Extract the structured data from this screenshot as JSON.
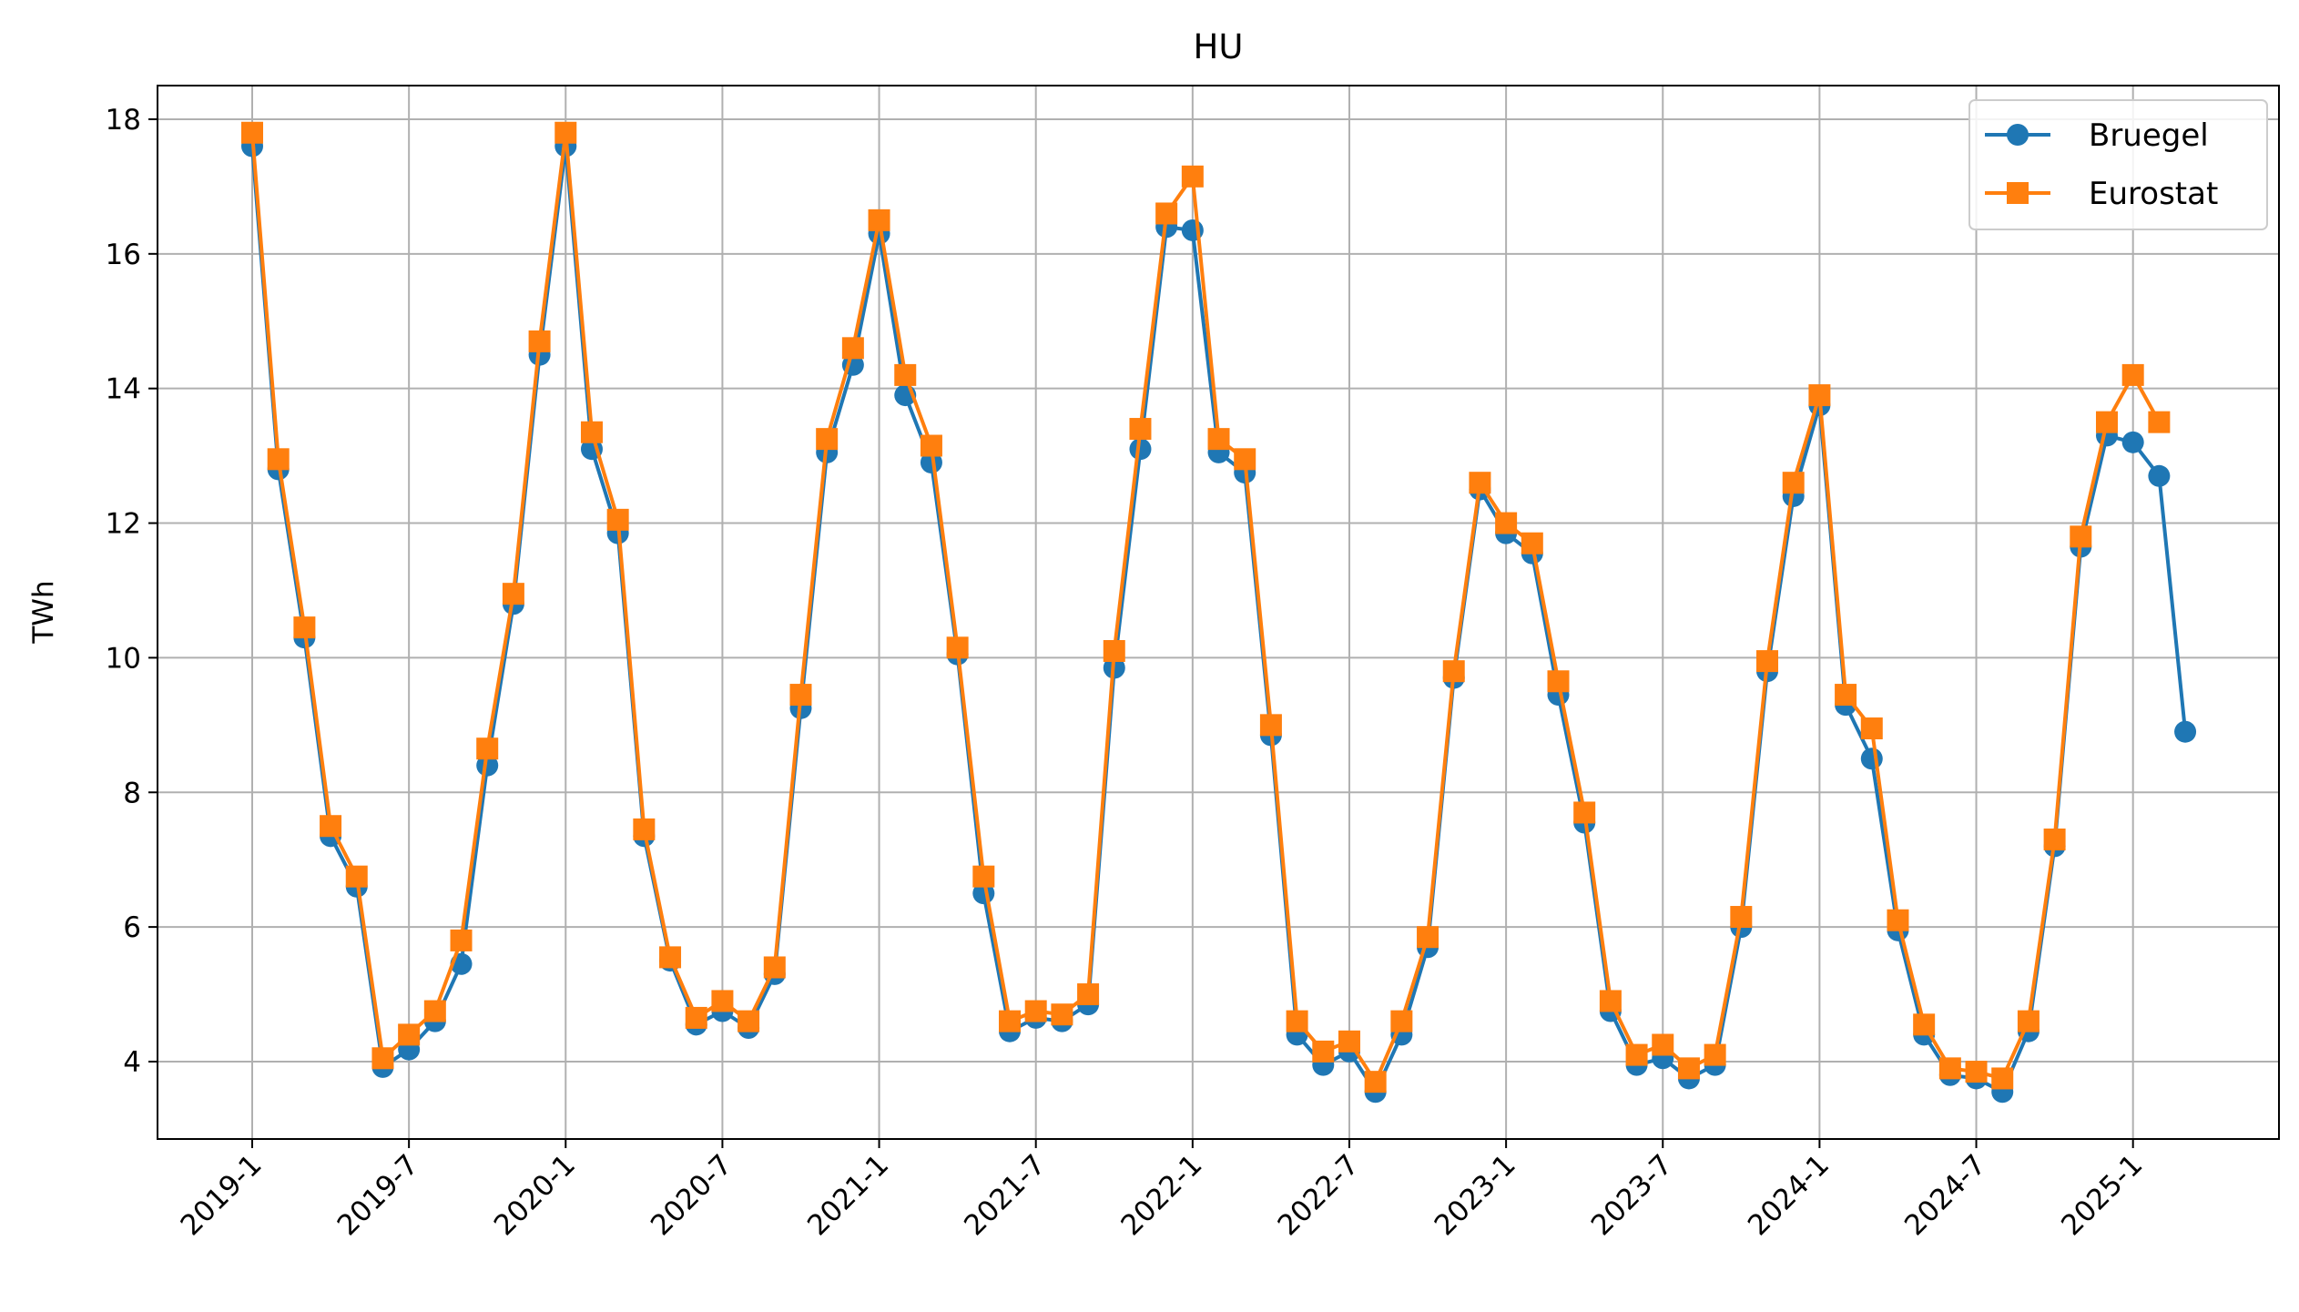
{
  "chart_data": {
    "type": "line",
    "title": "HU",
    "xlabel": "",
    "ylabel": "TWh",
    "grid": true,
    "legend_position": "upper right",
    "x_start": "2019-1",
    "x_tick_labels": [
      "2019-1",
      "2019-7",
      "2020-1",
      "2020-7",
      "2021-1",
      "2021-7",
      "2022-1",
      "2022-7",
      "2023-1",
      "2023-7",
      "2024-1",
      "2024-7",
      "2025-1"
    ],
    "y_ticks": [
      4,
      6,
      8,
      10,
      12,
      14,
      16,
      18
    ],
    "ylim": [
      2.85,
      18.5
    ],
    "series": [
      {
        "name": "Bruegel",
        "color": "#1f77b4",
        "marker": "circle",
        "values": [
          17.6,
          12.8,
          10.3,
          7.35,
          6.6,
          3.92,
          4.18,
          4.6,
          5.45,
          8.4,
          10.8,
          14.5,
          17.6,
          13.1,
          11.85,
          7.35,
          5.5,
          4.55,
          4.75,
          4.5,
          5.3,
          9.25,
          13.05,
          14.35,
          16.3,
          13.9,
          12.9,
          10.05,
          6.5,
          4.45,
          4.65,
          4.6,
          4.85,
          9.85,
          13.1,
          16.4,
          16.35,
          13.05,
          12.75,
          8.85,
          4.4,
          3.95,
          4.15,
          3.55,
          4.4,
          5.7,
          9.7,
          12.5,
          11.85,
          11.55,
          9.45,
          7.55,
          4.75,
          3.95,
          4.05,
          3.75,
          3.95,
          6.0,
          9.8,
          12.4,
          13.75,
          9.3,
          8.5,
          5.95,
          4.4,
          3.8,
          3.75,
          3.55,
          4.45,
          7.2,
          11.65,
          13.3,
          13.2,
          12.7,
          8.9
        ]
      },
      {
        "name": "Eurostat",
        "color": "#ff7f0e",
        "marker": "square",
        "values": [
          17.8,
          12.95,
          10.45,
          7.5,
          6.75,
          4.05,
          4.4,
          4.75,
          5.8,
          8.65,
          10.95,
          14.7,
          17.8,
          13.35,
          12.05,
          7.45,
          5.55,
          4.65,
          4.9,
          4.6,
          5.4,
          9.45,
          13.25,
          14.6,
          16.5,
          14.2,
          13.15,
          10.15,
          6.75,
          4.6,
          4.75,
          4.7,
          5.0,
          10.1,
          13.4,
          16.6,
          17.15,
          13.25,
          12.95,
          9.0,
          4.6,
          4.15,
          4.3,
          3.7,
          4.6,
          5.85,
          9.8,
          12.6,
          12.0,
          11.7,
          9.65,
          7.7,
          4.9,
          4.1,
          4.25,
          3.9,
          4.1,
          6.15,
          9.95,
          12.6,
          13.9,
          9.45,
          8.95,
          6.1,
          4.55,
          3.9,
          3.85,
          3.75,
          4.6,
          7.3,
          11.8,
          13.5,
          14.2,
          13.5
        ]
      }
    ]
  }
}
